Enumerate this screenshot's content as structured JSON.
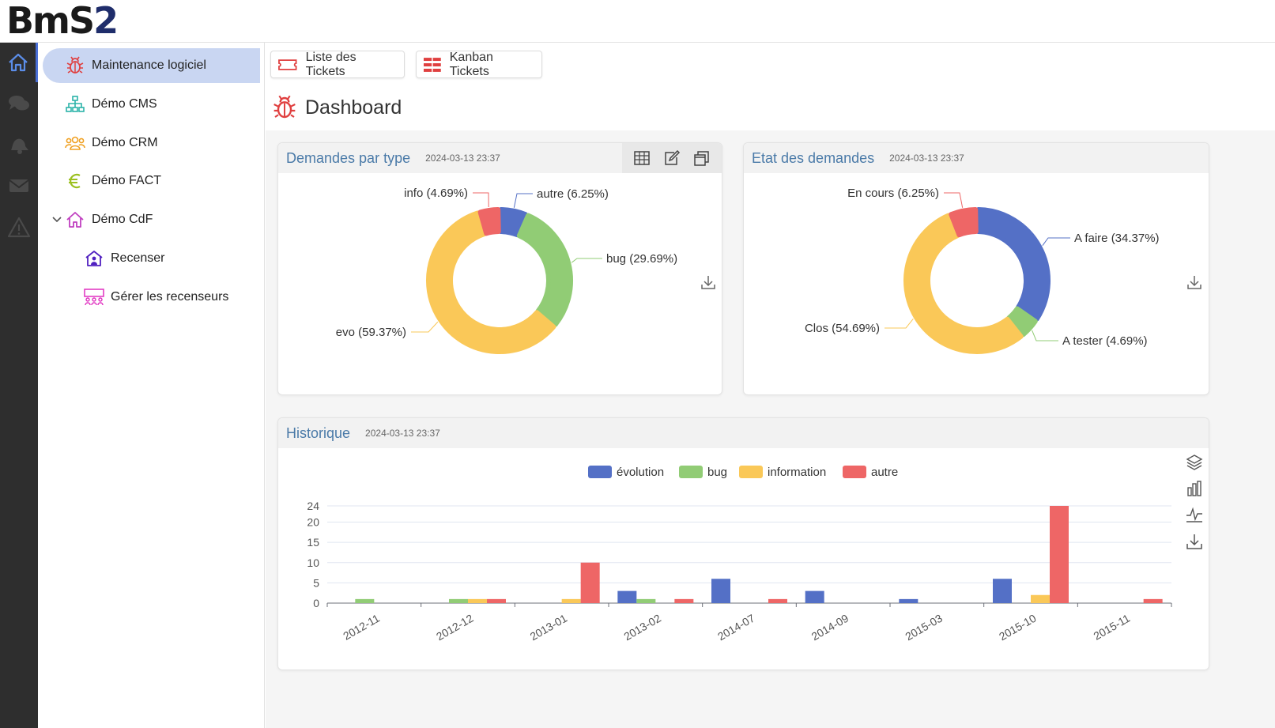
{
  "app": {
    "logo_main": "BmS",
    "logo_accent": "2"
  },
  "iconbar": [
    {
      "name": "home-icon",
      "active": true
    },
    {
      "name": "chat-icon",
      "active": false
    },
    {
      "name": "bell-icon",
      "active": false
    },
    {
      "name": "mail-icon",
      "active": false
    },
    {
      "name": "warning-icon",
      "active": false
    }
  ],
  "sidebar": {
    "items": [
      {
        "label": "Maintenance logiciel",
        "icon": "bug-icon",
        "color": "#e04040",
        "active": true
      },
      {
        "label": "Démo CMS",
        "icon": "sitemap-icon",
        "color": "#2bb3a8"
      },
      {
        "label": "Démo CRM",
        "icon": "users-icon",
        "color": "#f0a020"
      },
      {
        "label": "Démo FACT",
        "icon": "euro-icon",
        "color": "#9cc020"
      },
      {
        "label": "Démo CdF",
        "icon": "house-icon",
        "color": "#c040c0",
        "expanded": true
      },
      {
        "label": "Recenser",
        "icon": "house-user-icon",
        "color": "#5020c0"
      },
      {
        "label": "Gérer les recenseurs",
        "icon": "people-board-icon",
        "color": "#e030c0"
      }
    ]
  },
  "toolbar": {
    "tickets_list": "Liste des Tickets",
    "kanban": "Kanban Tickets"
  },
  "page": {
    "title": "Dashboard"
  },
  "colors": {
    "blue": "#5470c6",
    "green": "#91cc75",
    "yellow": "#fac858",
    "red": "#ee6666",
    "title_blue": "#4a7aa8"
  },
  "cards": {
    "type": {
      "title": "Demandes par type",
      "date": "2024-03-13 23:37"
    },
    "etat": {
      "title": "Etat des demandes",
      "date": "2024-03-13 23:37"
    },
    "hist": {
      "title": "Historique",
      "date": "2024-03-13 23:37"
    }
  },
  "chart_data": [
    {
      "type": "pie",
      "title": "Demandes par type",
      "slices": [
        {
          "name": "autre",
          "label": "autre (6.25%)",
          "value": 6.25,
          "color": "#5470c6"
        },
        {
          "name": "bug",
          "label": "bug (29.69%)",
          "value": 29.69,
          "color": "#91cc75"
        },
        {
          "name": "evo",
          "label": "evo (59.37%)",
          "value": 59.37,
          "color": "#fac858"
        },
        {
          "name": "info",
          "label": "info (4.69%)",
          "value": 4.69,
          "color": "#ee6666"
        }
      ]
    },
    {
      "type": "pie",
      "title": "Etat des demandes",
      "slices": [
        {
          "name": "A faire",
          "label": "A faire (34.37%)",
          "value": 34.37,
          "color": "#5470c6"
        },
        {
          "name": "A tester",
          "label": "A tester (4.69%)",
          "value": 4.69,
          "color": "#91cc75"
        },
        {
          "name": "Clos",
          "label": "Clos (54.69%)",
          "value": 54.69,
          "color": "#fac858"
        },
        {
          "name": "En cours",
          "label": "En cours (6.25%)",
          "value": 6.25,
          "color": "#ee6666"
        }
      ]
    },
    {
      "type": "bar",
      "title": "Historique",
      "categories": [
        "2012-11",
        "2012-12",
        "2013-01",
        "2013-02",
        "2014-07",
        "2014-09",
        "2015-03",
        "2015-10",
        "2015-11"
      ],
      "series": [
        {
          "name": "évolution",
          "color": "#5470c6",
          "values": [
            0,
            0,
            0,
            3,
            6,
            3,
            1,
            6,
            0
          ]
        },
        {
          "name": "bug",
          "color": "#91cc75",
          "values": [
            1,
            1,
            0,
            1,
            0,
            0,
            0,
            0,
            0
          ]
        },
        {
          "name": "information",
          "color": "#fac858",
          "values": [
            0,
            1,
            1,
            0,
            0,
            0,
            0,
            2,
            0
          ]
        },
        {
          "name": "autre",
          "color": "#ee6666",
          "values": [
            0,
            1,
            10,
            1,
            1,
            0,
            0,
            24,
            1
          ]
        }
      ],
      "yticks": [
        0,
        5,
        10,
        15,
        20,
        24
      ],
      "ylim": [
        0,
        24
      ],
      "legend": "top-center"
    }
  ]
}
